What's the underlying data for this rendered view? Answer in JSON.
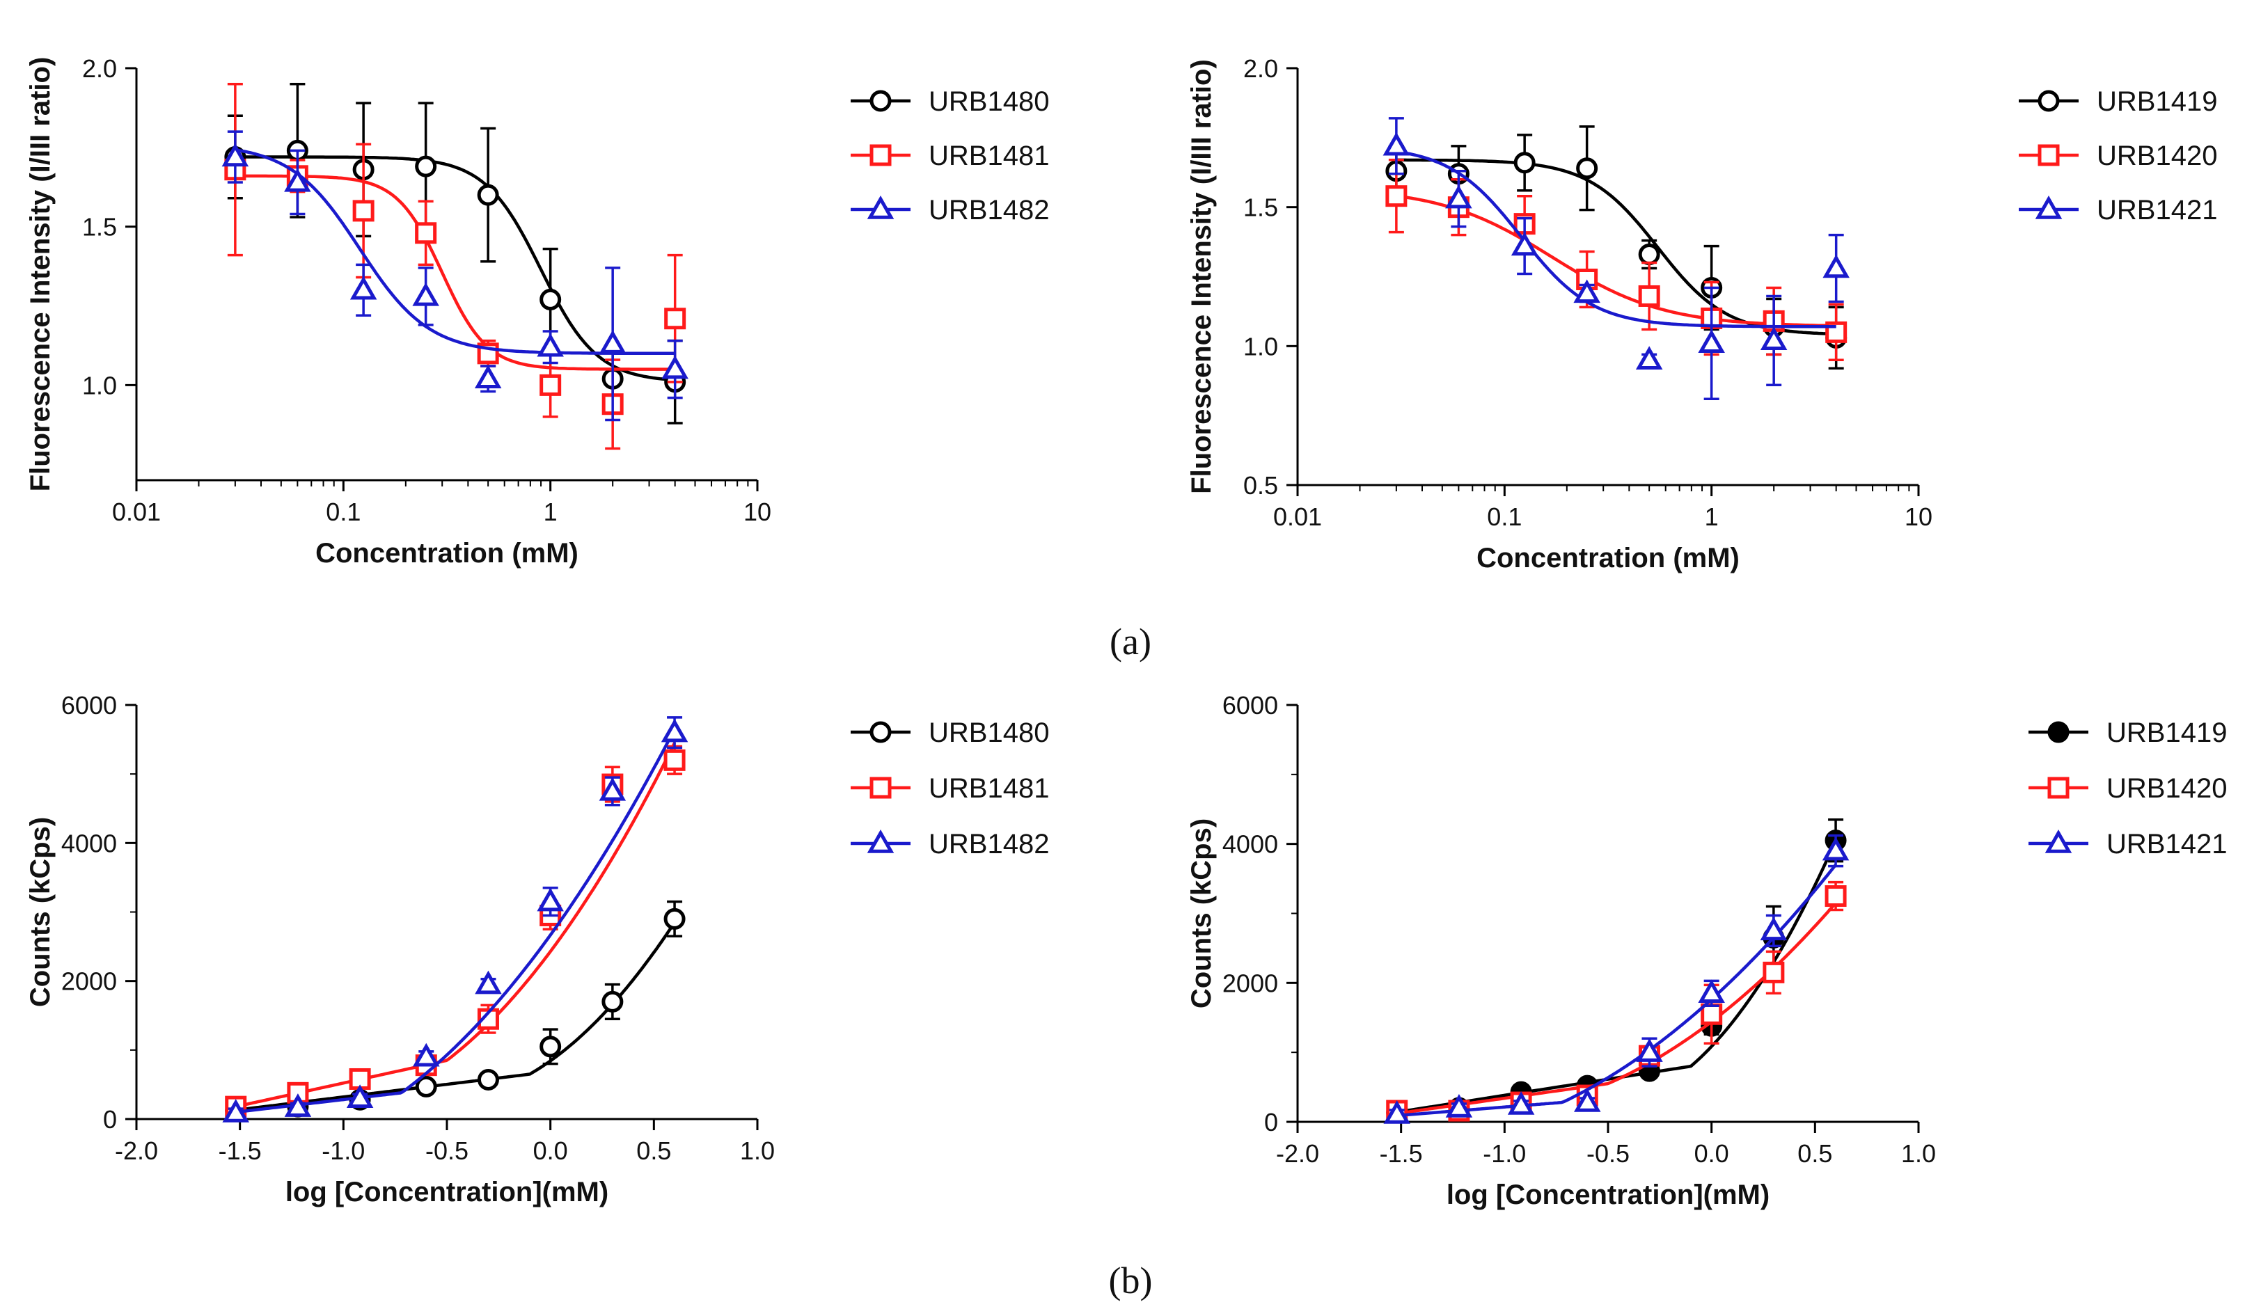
{
  "panel_labels": {
    "a": "(a)",
    "b": "(b)"
  },
  "chart_data": [
    {
      "id": "a_left",
      "type": "scatter",
      "xscale": "log",
      "xlim": [
        0.01,
        10
      ],
      "ylim": [
        0.7,
        2.0
      ],
      "xticks": [
        0.01,
        0.1,
        1,
        10
      ],
      "xtick_labels": [
        "0.01",
        "0.1",
        "1",
        "10"
      ],
      "yticks": [
        1.0,
        1.5,
        2.0
      ],
      "ytick_labels": [
        "1.0",
        "1.5",
        "2.0"
      ],
      "xlabel": "Concentration (mM)",
      "ylabel": "Fluorescence Intensity (I/III ratio)",
      "legend_position": "right",
      "series": [
        {
          "name": "URB1480",
          "color": "#000000",
          "marker": "circle",
          "x": [
            0.03,
            0.06,
            0.125,
            0.25,
            0.5,
            1,
            2,
            4
          ],
          "y": [
            1.72,
            1.74,
            1.68,
            1.69,
            1.6,
            1.27,
            1.02,
            1.01
          ],
          "err": [
            0.13,
            0.21,
            0.21,
            0.2,
            0.21,
            0.16,
            0.09,
            0.13
          ],
          "fit": {
            "kind": "sigmoid",
            "top": 1.72,
            "bottom": 1.01,
            "ec50": 0.9,
            "hill": 3.2
          }
        },
        {
          "name": "URB1481",
          "color": "#ff1a1a",
          "marker": "square",
          "x": [
            0.03,
            0.06,
            0.125,
            0.25,
            0.5,
            1,
            2,
            4
          ],
          "y": [
            1.68,
            1.66,
            1.55,
            1.48,
            1.1,
            1.0,
            0.94,
            1.21
          ],
          "err": [
            0.27,
            0.05,
            0.21,
            0.1,
            0.04,
            0.1,
            0.14,
            0.2
          ],
          "fit": {
            "kind": "sigmoid",
            "top": 1.66,
            "bottom": 1.05,
            "ec50": 0.3,
            "hill": 4.0
          }
        },
        {
          "name": "URB1482",
          "color": "#1a1acc",
          "marker": "triangle",
          "x": [
            0.03,
            0.06,
            0.125,
            0.25,
            0.5,
            1,
            2,
            4
          ],
          "y": [
            1.72,
            1.64,
            1.3,
            1.28,
            1.02,
            1.12,
            1.13,
            1.05
          ],
          "err": [
            0.08,
            0.1,
            0.08,
            0.09,
            0.04,
            0.05,
            0.24,
            0.09
          ],
          "fit": {
            "kind": "sigmoid",
            "top": 1.76,
            "bottom": 1.1,
            "ec50": 0.12,
            "hill": 2.6
          }
        }
      ]
    },
    {
      "id": "a_right",
      "type": "scatter",
      "xscale": "log",
      "xlim": [
        0.01,
        10
      ],
      "ylim": [
        0.5,
        2.0
      ],
      "xticks": [
        0.01,
        0.1,
        1,
        10
      ],
      "xtick_labels": [
        "0.01",
        "0.1",
        "1",
        "10"
      ],
      "yticks": [
        0.5,
        1.0,
        1.5,
        2.0
      ],
      "ytick_labels": [
        "0.5",
        "1.0",
        "1.5",
        "2.0"
      ],
      "xlabel": "Concentration (mM)",
      "ylabel": "Fluorescence Intensity (I/III ratio)",
      "legend_position": "right",
      "series": [
        {
          "name": "URB1419",
          "color": "#000000",
          "marker": "circle",
          "x": [
            0.03,
            0.06,
            0.125,
            0.25,
            0.5,
            1,
            2,
            4
          ],
          "y": [
            1.63,
            1.62,
            1.66,
            1.64,
            1.33,
            1.21,
            1.07,
            1.03
          ],
          "err": [
            0.09,
            0.1,
            0.1,
            0.15,
            0.05,
            0.15,
            0.1,
            0.11
          ],
          "fit": {
            "kind": "sigmoid",
            "top": 1.67,
            "bottom": 1.04,
            "ec50": 0.55,
            "hill": 2.6
          }
        },
        {
          "name": "URB1420",
          "color": "#ff1a1a",
          "marker": "square",
          "x": [
            0.03,
            0.06,
            0.125,
            0.25,
            0.5,
            1,
            2,
            4
          ],
          "y": [
            1.54,
            1.5,
            1.44,
            1.24,
            1.18,
            1.1,
            1.09,
            1.05
          ],
          "err": [
            0.13,
            0.1,
            0.1,
            0.1,
            0.12,
            0.13,
            0.12,
            0.1
          ],
          "fit": {
            "kind": "sigmoid",
            "top": 1.57,
            "bottom": 1.07,
            "ec50": 0.17,
            "hill": 1.6
          }
        },
        {
          "name": "URB1421",
          "color": "#1a1acc",
          "marker": "triangle",
          "x": [
            0.03,
            0.06,
            0.125,
            0.25,
            0.5,
            1,
            2,
            4
          ],
          "y": [
            1.72,
            1.53,
            1.36,
            1.19,
            0.95,
            1.01,
            1.02,
            1.28
          ],
          "err": [
            0.1,
            0.1,
            0.1,
            0.03,
            0.02,
            0.2,
            0.16,
            0.12
          ],
          "fit": {
            "kind": "sigmoid",
            "top": 1.72,
            "bottom": 1.07,
            "ec50": 0.12,
            "hill": 2.5
          }
        }
      ]
    },
    {
      "id": "b_left",
      "type": "line",
      "xlim": [
        -2.0,
        1.0
      ],
      "ylim": [
        0,
        6000
      ],
      "xticks": [
        -2.0,
        -1.5,
        -1.0,
        -0.5,
        0.0,
        0.5,
        1.0
      ],
      "xtick_labels": [
        "-2.0",
        "-1.5",
        "-1.0",
        "-0.5",
        "0.0",
        "0.5",
        "1.0"
      ],
      "yticks": [
        0,
        2000,
        4000,
        6000
      ],
      "ytick_labels": [
        "0",
        "2000",
        "4000",
        "6000"
      ],
      "xlabel": "log [Concentration](mM)",
      "ylabel": "Counts (kCps)",
      "legend_position": "right",
      "series": [
        {
          "name": "URB1480",
          "color": "#000000",
          "marker": "circle",
          "x": [
            -1.52,
            -1.22,
            -0.92,
            -0.6,
            -0.3,
            0.0,
            0.3,
            0.6
          ],
          "y": [
            120,
            180,
            280,
            470,
            570,
            1050,
            1700,
            2900
          ],
          "err": [
            60,
            60,
            60,
            60,
            60,
            250,
            250,
            250
          ],
          "fit": {
            "kind": "poly",
            "x": [
              -1.52,
              -0.1,
              0.6
            ],
            "y": [
              130,
              650,
              2850
            ]
          }
        },
        {
          "name": "URB1481",
          "color": "#ff1a1a",
          "marker": "square",
          "x": [
            -1.52,
            -1.22,
            -0.92,
            -0.6,
            -0.3,
            0.0,
            0.3,
            0.6
          ],
          "y": [
            180,
            380,
            580,
            780,
            1450,
            2950,
            4850,
            5200
          ],
          "err": [
            60,
            60,
            60,
            120,
            200,
            200,
            250,
            200
          ],
          "fit": {
            "kind": "poly",
            "x": [
              -1.52,
              -0.5,
              0.6
            ],
            "y": [
              180,
              850,
              5450
            ]
          }
        },
        {
          "name": "URB1482",
          "color": "#1a1acc",
          "marker": "triangle",
          "x": [
            -1.52,
            -1.22,
            -0.92,
            -0.6,
            -0.3,
            0.0,
            0.3,
            0.6
          ],
          "y": [
            90,
            170,
            300,
            900,
            1950,
            3150,
            4750,
            5600
          ],
          "err": [
            60,
            60,
            60,
            80,
            80,
            200,
            200,
            220
          ],
          "fit": {
            "kind": "poly",
            "x": [
              -1.52,
              -0.72,
              0.6
            ],
            "y": [
              100,
              380,
              5650
            ]
          }
        }
      ]
    },
    {
      "id": "b_right",
      "type": "line",
      "xlim": [
        -2.0,
        1.0
      ],
      "ylim": [
        0,
        6000
      ],
      "xticks": [
        -2.0,
        -1.5,
        -1.0,
        -0.5,
        0.0,
        0.5,
        1.0
      ],
      "xtick_labels": [
        "-2.0",
        "-1.5",
        "-1.0",
        "-0.5",
        "0.0",
        "0.5",
        "1.0"
      ],
      "yticks": [
        0,
        2000,
        4000,
        6000
      ],
      "ytick_labels": [
        "0",
        "2000",
        "4000",
        "6000"
      ],
      "xlabel": "log [Concentration](mM)",
      "ylabel": "Counts (kCps)",
      "legend_position": "right",
      "series": [
        {
          "name": "URB1419",
          "color": "#000000",
          "marker": "filled-circle",
          "x": [
            -1.52,
            -1.22,
            -0.92,
            -0.6,
            -0.3,
            0.0,
            0.3,
            0.6
          ],
          "y": [
            130,
            200,
            430,
            520,
            730,
            1380,
            2650,
            4050
          ],
          "err": [
            60,
            80,
            60,
            70,
            80,
            120,
            450,
            300
          ],
          "fit": {
            "kind": "poly",
            "x": [
              -1.52,
              -0.1,
              0.6
            ],
            "y": [
              140,
              800,
              4050
            ]
          }
        },
        {
          "name": "URB1420",
          "color": "#ff1a1a",
          "marker": "square",
          "x": [
            -1.52,
            -1.22,
            -0.92,
            -0.6,
            -0.3,
            0.0,
            0.3,
            0.6
          ],
          "y": [
            160,
            160,
            280,
            380,
            950,
            1550,
            2150,
            3250
          ],
          "err": [
            60,
            60,
            60,
            60,
            100,
            420,
            300,
            200
          ],
          "fit": {
            "kind": "poly",
            "x": [
              -1.52,
              -0.5,
              0.6
            ],
            "y": [
              120,
              550,
              3150
            ]
          }
        },
        {
          "name": "URB1421",
          "color": "#1a1acc",
          "marker": "triangle",
          "x": [
            -1.52,
            -1.22,
            -0.92,
            -0.6,
            -0.3,
            0.0,
            0.3,
            0.6
          ],
          "y": [
            110,
            200,
            240,
            280,
            1000,
            1850,
            2750,
            3900
          ],
          "err": [
            60,
            60,
            60,
            60,
            200,
            180,
            220,
            220
          ],
          "fit": {
            "kind": "poly",
            "x": [
              -1.52,
              -0.72,
              0.6
            ],
            "y": [
              90,
              280,
              3700
            ]
          }
        }
      ]
    }
  ]
}
